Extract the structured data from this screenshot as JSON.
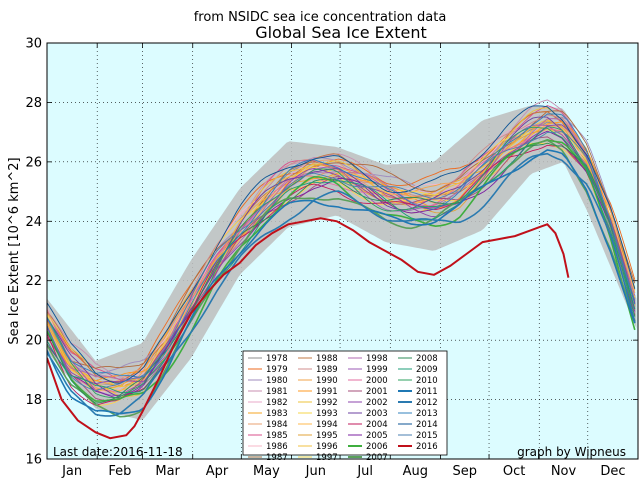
{
  "chart_data": {
    "type": "line",
    "subtitle": "from NSIDC sea ice concentration data",
    "title": "Global Sea Ice Extent",
    "ylabel": "Sea Ice Extent [10^6 km^2]",
    "ylim": [
      16,
      30
    ],
    "yticks": [
      16,
      18,
      20,
      22,
      24,
      26,
      28,
      30
    ],
    "months": [
      "Jan",
      "Feb",
      "Mar",
      "Apr",
      "May",
      "Jun",
      "Jul",
      "Aug",
      "Sep",
      "Oct",
      "Nov",
      "Dec"
    ],
    "grid": true,
    "legend_position": "bottom-center",
    "last_date_label": "Last date:2016-11-18",
    "credit": "graph by Wipneus",
    "background_color": "#dcfcff",
    "band_color": "#bdbdbd",
    "spread_band": {
      "x": [
        1,
        31,
        60,
        90,
        120,
        150,
        180,
        210,
        240,
        270,
        300,
        320,
        335,
        365
      ],
      "low": [
        19.6,
        17.7,
        17.3,
        19.4,
        22.2,
        23.8,
        24.2,
        23.3,
        23.0,
        23.7,
        25.6,
        26.0,
        24.3,
        20.4
      ],
      "high": [
        21.4,
        19.3,
        19.9,
        22.7,
        25.1,
        26.7,
        26.5,
        25.9,
        26.0,
        27.4,
        27.9,
        27.8,
        26.2,
        21.4
      ]
    },
    "climatology": {
      "x": [
        1,
        15,
        31,
        45,
        60,
        75,
        90,
        105,
        120,
        135,
        150,
        165,
        180,
        195,
        210,
        225,
        240,
        255,
        270,
        285,
        300,
        310,
        320,
        335,
        350,
        365
      ],
      "y": [
        20.5,
        19.1,
        18.4,
        18.3,
        18.6,
        19.7,
        21.1,
        22.5,
        23.6,
        24.5,
        25.2,
        25.6,
        25.6,
        25.2,
        24.8,
        24.6,
        24.6,
        24.9,
        25.6,
        26.4,
        27.0,
        27.2,
        27.0,
        25.9,
        23.8,
        21.0
      ]
    },
    "series": [
      {
        "name": "1978",
        "color": "#8c8c8c",
        "offset": 0.1
      },
      {
        "name": "1979",
        "color": "#ee6a1e",
        "offset": 0.6
      },
      {
        "name": "1980",
        "color": "#9f8bbe",
        "offset": 0.4
      },
      {
        "name": "1981",
        "color": "#c98fb1",
        "offset": 0.5
      },
      {
        "name": "1982",
        "color": "#e9a9c8",
        "offset": 0.3
      },
      {
        "name": "1983",
        "color": "#f5a623",
        "offset": 0.2
      },
      {
        "name": "1984",
        "color": "#e8a070",
        "offset": 0.1
      },
      {
        "name": "1985",
        "color": "#d94f8b",
        "offset": 0.4
      },
      {
        "name": "1986",
        "color": "#f7b7c7",
        "offset": 0.3
      },
      {
        "name": "1987",
        "color": "#b06a3c",
        "offset": 0.5
      },
      {
        "name": "1988",
        "color": "#c17a45",
        "offset": 0.3
      },
      {
        "name": "1989",
        "color": "#d08c8c",
        "offset": 0.4
      },
      {
        "name": "1990",
        "color": "#f2a34a",
        "offset": 0.2
      },
      {
        "name": "1991",
        "color": "#ff9922",
        "offset": 0.1
      },
      {
        "name": "1992",
        "color": "#eec33b",
        "offset": 0.3
      },
      {
        "name": "1993",
        "color": "#f5d64a",
        "offset": 0.2
      },
      {
        "name": "1994",
        "color": "#ffb84d",
        "offset": 0.0
      },
      {
        "name": "1995",
        "color": "#e1a339",
        "offset": -0.1
      },
      {
        "name": "1996",
        "color": "#f0c040",
        "offset": 0.0
      },
      {
        "name": "1997",
        "color": "#ffd24d",
        "offset": -0.2
      },
      {
        "name": "1998",
        "color": "#b26ab0",
        "offset": 0.1
      },
      {
        "name": "1999",
        "color": "#9b59b6",
        "offset": -0.1
      },
      {
        "name": "2000",
        "color": "#e36ea0",
        "offset": 0.0
      },
      {
        "name": "2001",
        "color": "#a64d79",
        "offset": -0.2
      },
      {
        "name": "2002",
        "color": "#8e44ad",
        "offset": -0.1
      },
      {
        "name": "2003",
        "color": "#6b3fa0",
        "offset": 0.1
      },
      {
        "name": "2004",
        "color": "#c2185b",
        "offset": -0.3
      },
      {
        "name": "2005",
        "color": "#7b1fa2",
        "offset": -0.3
      },
      {
        "name": "2006",
        "color": "#3fae3f",
        "offset": -0.5
      },
      {
        "name": "2007",
        "color": "#5aa05a",
        "offset": -0.6
      },
      {
        "name": "2008",
        "color": "#2e8b57",
        "offset": -0.2
      },
      {
        "name": "2009",
        "color": "#1b9e77",
        "offset": -0.3
      },
      {
        "name": "2010",
        "color": "#2ca25f",
        "offset": -0.1
      },
      {
        "name": "2011",
        "color": "#1f78b4",
        "offset": -0.7
      },
      {
        "name": "2012",
        "color": "#2a7ab0",
        "offset": -0.8
      },
      {
        "name": "2013",
        "color": "#3182bd",
        "offset": 0.2
      },
      {
        "name": "2014",
        "color": "#0b5394",
        "offset": 0.6
      },
      {
        "name": "2015",
        "color": "#4a7fb0",
        "offset": 0.1
      },
      {
        "name": "2016",
        "color": "#c0101a",
        "offset": -1.2
      }
    ],
    "year_2016": {
      "x": [
        1,
        10,
        20,
        31,
        40,
        50,
        55,
        60,
        70,
        80,
        90,
        100,
        110,
        120,
        130,
        140,
        150,
        160,
        170,
        180,
        190,
        200,
        210,
        220,
        230,
        240,
        250,
        260,
        270,
        280,
        290,
        300,
        305,
        310,
        315,
        320,
        323
      ],
      "y": [
        19.4,
        18.0,
        17.3,
        16.9,
        16.7,
        16.8,
        17.1,
        17.6,
        18.7,
        19.9,
        20.9,
        21.6,
        22.2,
        22.6,
        23.2,
        23.6,
        23.9,
        24.0,
        24.1,
        24.0,
        23.7,
        23.3,
        23.0,
        22.7,
        22.3,
        22.2,
        22.5,
        22.9,
        23.3,
        23.4,
        23.5,
        23.7,
        23.8,
        23.9,
        23.6,
        22.9,
        22.1
      ]
    }
  }
}
